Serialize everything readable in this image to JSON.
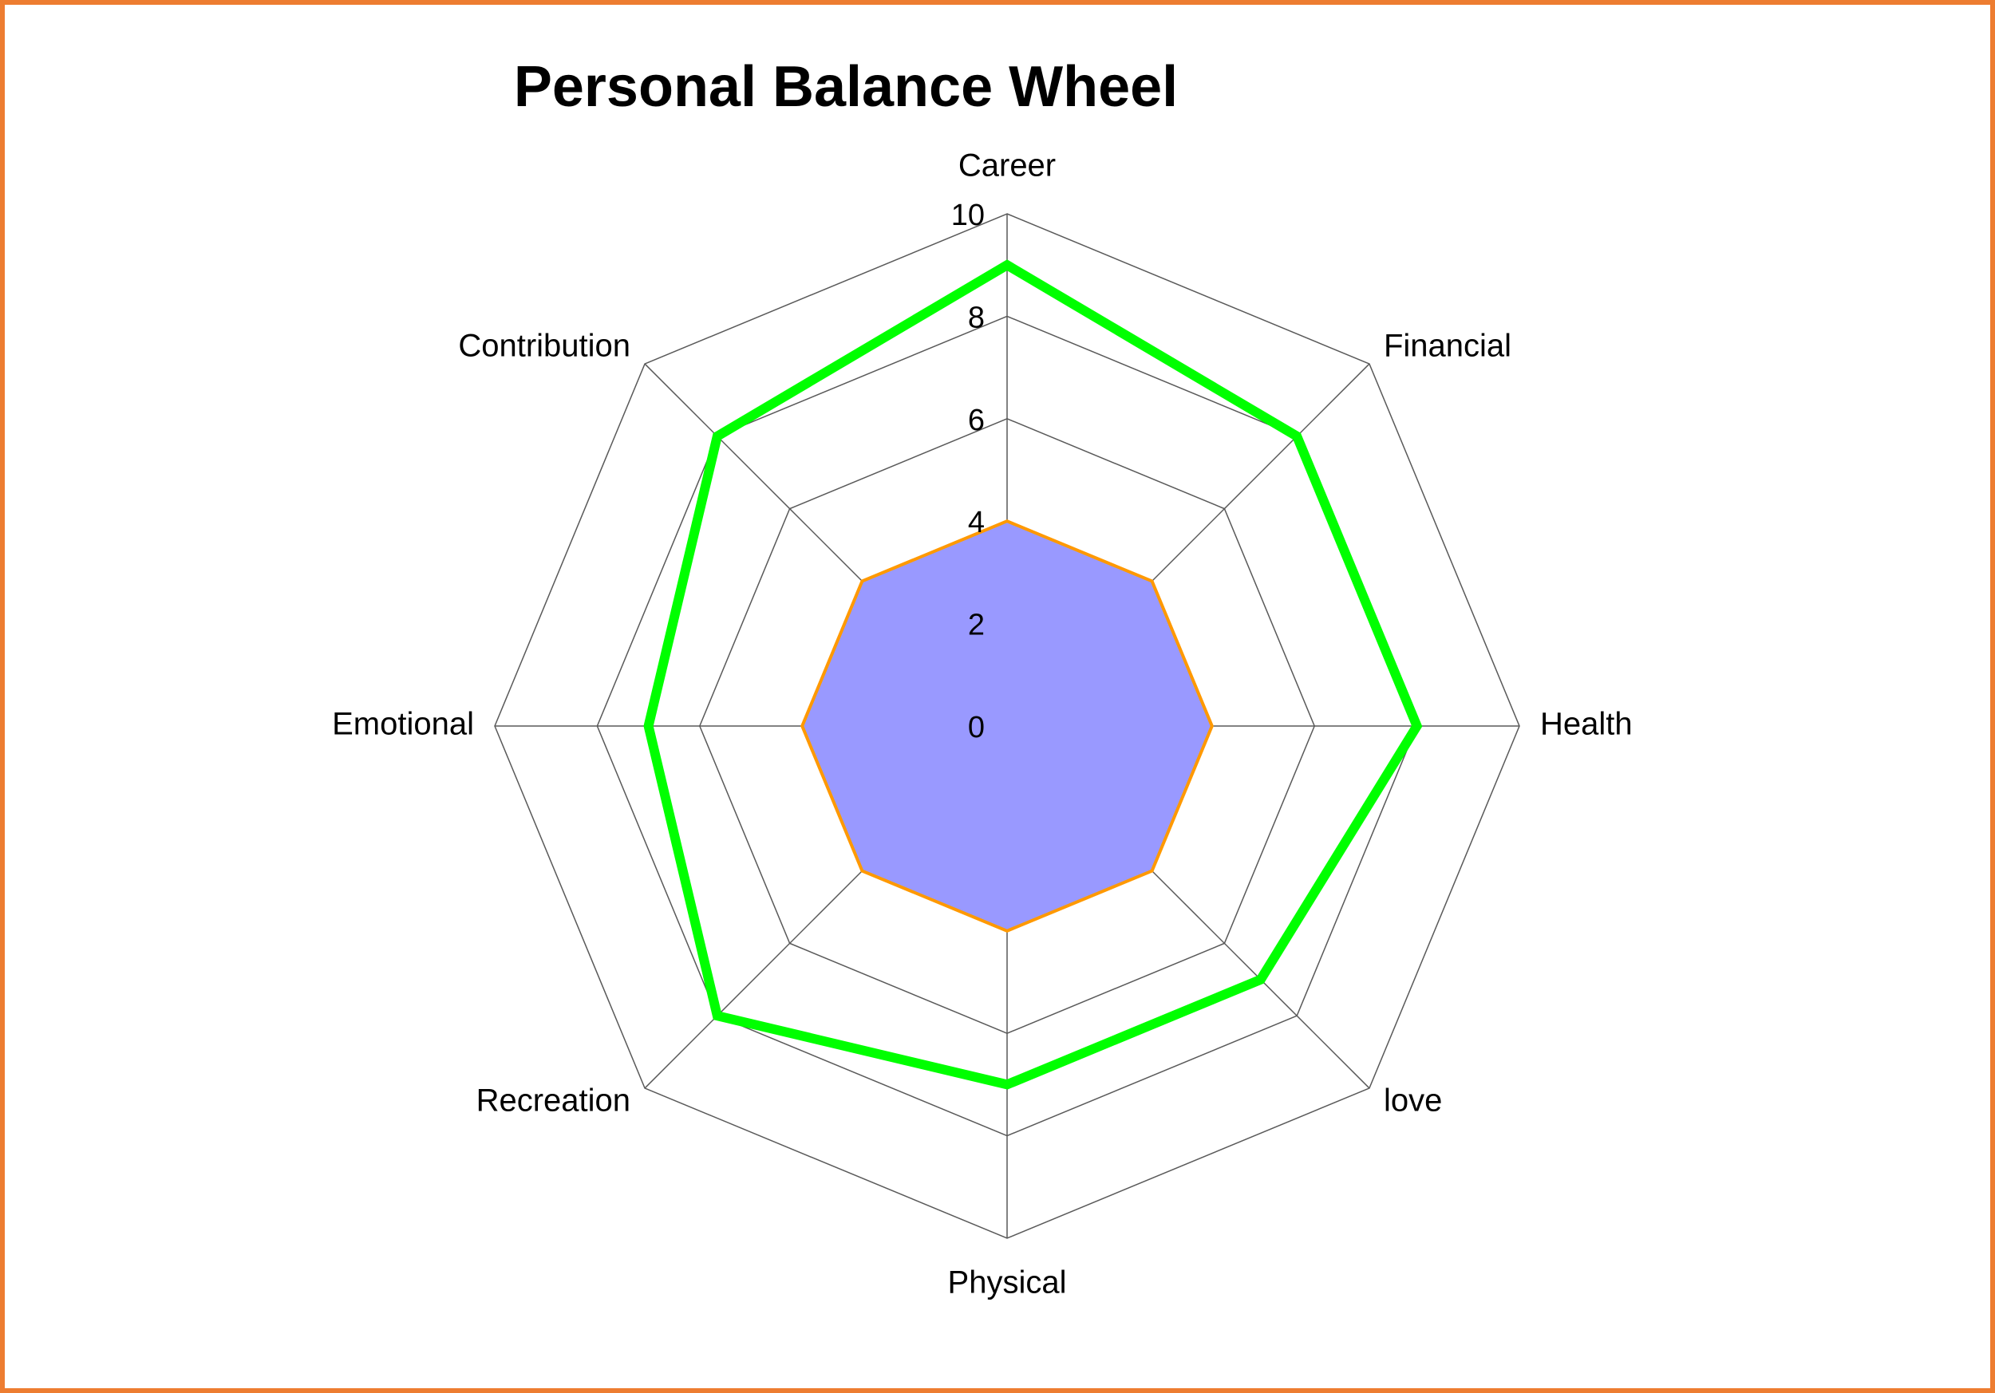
{
  "chart_data": {
    "type": "radar",
    "title": "Personal Balance Wheel",
    "categories": [
      "Career",
      "Financial",
      "Health",
      "love",
      "Physical",
      "Recreation",
      "Emotional",
      "Contribution"
    ],
    "axis": {
      "min": 0,
      "max": 10,
      "ticks": [
        0,
        2,
        4,
        6,
        8,
        10
      ],
      "tick_labels": [
        "0",
        "2",
        "4",
        "6",
        "8",
        "10"
      ]
    },
    "grid": true,
    "legend": "none",
    "series": [
      {
        "values": [
          4,
          4,
          4,
          4,
          4,
          4,
          4,
          4
        ],
        "style": "filled",
        "fill": "#9999FF",
        "stroke": "#FF9900"
      },
      {
        "values": [
          9,
          8,
          8,
          7,
          7,
          8,
          7,
          8
        ],
        "style": "line",
        "fill": "none",
        "stroke": "#00FF00"
      }
    ]
  },
  "colors": {
    "frame_border": "#ED7D31",
    "grid_line": "#595959",
    "text": "#000000"
  }
}
